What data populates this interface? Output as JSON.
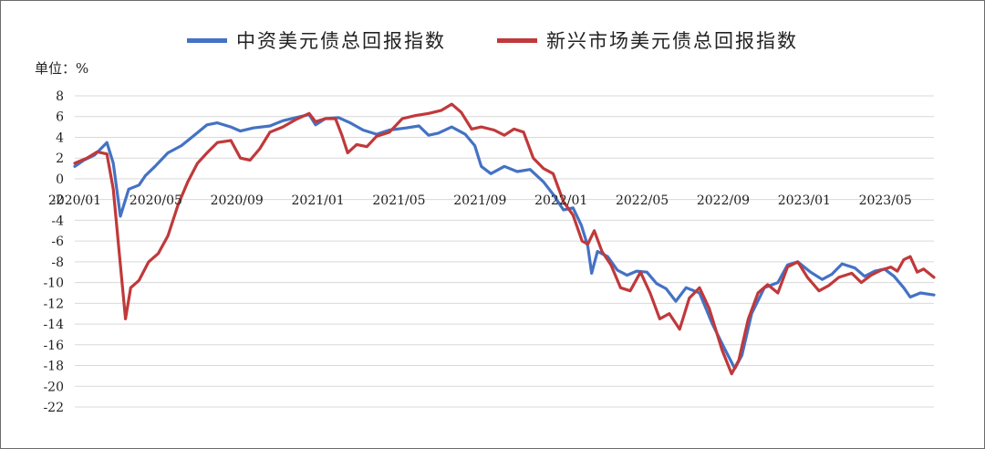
{
  "chart_data": {
    "type": "line",
    "unit_label": "单位：%",
    "legend_position": "top-center",
    "grid": true,
    "ylim": [
      -22,
      8
    ],
    "y_ticks": [
      8,
      6,
      4,
      2,
      0,
      -2,
      -4,
      -6,
      -8,
      -10,
      -12,
      -14,
      -16,
      -18,
      -20,
      -22
    ],
    "x_ticks": [
      "2020/01",
      "2020/05",
      "2020/09",
      "2021/01",
      "2021/05",
      "2021/09",
      "2022/01",
      "2022/05",
      "2022/09",
      "2023/01",
      "2023/05"
    ],
    "x_range": [
      "2020-01-01",
      "2023-08-31"
    ],
    "series": [
      {
        "name": "中资美元债总回报指数",
        "color": "#4472c4",
        "points": [
          [
            "2020-01-01",
            1.2
          ],
          [
            "2020-01-15",
            1.8
          ],
          [
            "2020-02-01",
            2.3
          ],
          [
            "2020-02-20",
            3.5
          ],
          [
            "2020-03-01",
            1.5
          ],
          [
            "2020-03-12",
            -3.6
          ],
          [
            "2020-03-25",
            -1.0
          ],
          [
            "2020-04-10",
            -0.6
          ],
          [
            "2020-04-20",
            0.3
          ],
          [
            "2020-05-05",
            1.2
          ],
          [
            "2020-05-25",
            2.5
          ],
          [
            "2020-06-15",
            3.2
          ],
          [
            "2020-07-05",
            4.2
          ],
          [
            "2020-07-25",
            5.2
          ],
          [
            "2020-08-10",
            5.4
          ],
          [
            "2020-08-31",
            5.0
          ],
          [
            "2020-09-15",
            4.6
          ],
          [
            "2020-10-05",
            4.9
          ],
          [
            "2020-10-31",
            5.1
          ],
          [
            "2020-11-20",
            5.6
          ],
          [
            "2020-12-10",
            5.9
          ],
          [
            "2020-12-31",
            6.2
          ],
          [
            "2021-01-10",
            5.2
          ],
          [
            "2021-01-25",
            5.8
          ],
          [
            "2021-02-15",
            5.9
          ],
          [
            "2021-03-05",
            5.4
          ],
          [
            "2021-03-25",
            4.7
          ],
          [
            "2021-04-15",
            4.3
          ],
          [
            "2021-05-05",
            4.7
          ],
          [
            "2021-05-31",
            4.9
          ],
          [
            "2021-06-20",
            5.1
          ],
          [
            "2021-07-05",
            4.2
          ],
          [
            "2021-07-20",
            4.4
          ],
          [
            "2021-08-10",
            5.0
          ],
          [
            "2021-08-31",
            4.3
          ],
          [
            "2021-09-15",
            3.2
          ],
          [
            "2021-09-25",
            1.2
          ],
          [
            "2021-10-10",
            0.5
          ],
          [
            "2021-10-31",
            1.2
          ],
          [
            "2021-11-20",
            0.7
          ],
          [
            "2021-12-10",
            0.9
          ],
          [
            "2021-12-31",
            -0.3
          ],
          [
            "2022-01-15",
            -1.5
          ],
          [
            "2022-01-31",
            -3.0
          ],
          [
            "2022-02-15",
            -2.8
          ],
          [
            "2022-02-28",
            -4.5
          ],
          [
            "2022-03-10",
            -6.5
          ],
          [
            "2022-03-16",
            -9.1
          ],
          [
            "2022-03-25",
            -7.0
          ],
          [
            "2022-04-10",
            -7.5
          ],
          [
            "2022-04-25",
            -8.8
          ],
          [
            "2022-05-10",
            -9.3
          ],
          [
            "2022-05-25",
            -8.9
          ],
          [
            "2022-06-10",
            -9.0
          ],
          [
            "2022-06-25",
            -10.1
          ],
          [
            "2022-07-10",
            -10.6
          ],
          [
            "2022-07-25",
            -11.8
          ],
          [
            "2022-08-10",
            -10.5
          ],
          [
            "2022-08-31",
            -11.0
          ],
          [
            "2022-09-20",
            -14.0
          ],
          [
            "2022-10-10",
            -16.5
          ],
          [
            "2022-10-25",
            -18.3
          ],
          [
            "2022-11-05",
            -17.0
          ],
          [
            "2022-11-20",
            -13.0
          ],
          [
            "2022-12-10",
            -10.5
          ],
          [
            "2022-12-31",
            -10.0
          ],
          [
            "2023-01-15",
            -8.3
          ],
          [
            "2023-01-31",
            -8.0
          ],
          [
            "2023-02-20",
            -9.0
          ],
          [
            "2023-03-10",
            -9.7
          ],
          [
            "2023-03-25",
            -9.2
          ],
          [
            "2023-04-10",
            -8.2
          ],
          [
            "2023-04-30",
            -8.6
          ],
          [
            "2023-05-15",
            -9.4
          ],
          [
            "2023-05-31",
            -8.9
          ],
          [
            "2023-06-15",
            -8.7
          ],
          [
            "2023-06-30",
            -9.4
          ],
          [
            "2023-07-15",
            -10.5
          ],
          [
            "2023-07-25",
            -11.4
          ],
          [
            "2023-08-10",
            -11.0
          ],
          [
            "2023-08-31",
            -11.2
          ]
        ]
      },
      {
        "name": "新兴市场美元债总回报指数",
        "color": "#c0393b",
        "points": [
          [
            "2020-01-01",
            1.5
          ],
          [
            "2020-01-20",
            2.0
          ],
          [
            "2020-02-05",
            2.6
          ],
          [
            "2020-02-20",
            2.4
          ],
          [
            "2020-03-01",
            -1.0
          ],
          [
            "2020-03-10",
            -7.0
          ],
          [
            "2020-03-20",
            -13.5
          ],
          [
            "2020-03-28",
            -10.5
          ],
          [
            "2020-04-10",
            -9.8
          ],
          [
            "2020-04-25",
            -8.0
          ],
          [
            "2020-05-10",
            -7.2
          ],
          [
            "2020-05-25",
            -5.5
          ],
          [
            "2020-06-10",
            -2.5
          ],
          [
            "2020-06-25",
            -0.3
          ],
          [
            "2020-07-10",
            1.5
          ],
          [
            "2020-07-25",
            2.5
          ],
          [
            "2020-08-10",
            3.5
          ],
          [
            "2020-08-31",
            3.7
          ],
          [
            "2020-09-15",
            2.0
          ],
          [
            "2020-09-30",
            1.8
          ],
          [
            "2020-10-15",
            2.9
          ],
          [
            "2020-10-31",
            4.5
          ],
          [
            "2020-11-20",
            5.0
          ],
          [
            "2020-12-10",
            5.7
          ],
          [
            "2020-12-31",
            6.3
          ],
          [
            "2021-01-10",
            5.5
          ],
          [
            "2021-01-25",
            5.8
          ],
          [
            "2021-02-10",
            5.8
          ],
          [
            "2021-02-20",
            4.2
          ],
          [
            "2021-03-01",
            2.5
          ],
          [
            "2021-03-15",
            3.3
          ],
          [
            "2021-03-31",
            3.1
          ],
          [
            "2021-04-15",
            4.1
          ],
          [
            "2021-05-05",
            4.5
          ],
          [
            "2021-05-25",
            5.8
          ],
          [
            "2021-06-15",
            6.1
          ],
          [
            "2021-07-05",
            6.3
          ],
          [
            "2021-07-25",
            6.6
          ],
          [
            "2021-08-10",
            7.2
          ],
          [
            "2021-08-25",
            6.4
          ],
          [
            "2021-09-10",
            4.8
          ],
          [
            "2021-09-25",
            5.0
          ],
          [
            "2021-10-15",
            4.7
          ],
          [
            "2021-10-31",
            4.2
          ],
          [
            "2021-11-15",
            4.8
          ],
          [
            "2021-11-30",
            4.5
          ],
          [
            "2021-12-15",
            2.0
          ],
          [
            "2021-12-31",
            1.0
          ],
          [
            "2022-01-15",
            0.5
          ],
          [
            "2022-01-31",
            -2.2
          ],
          [
            "2022-02-15",
            -3.5
          ],
          [
            "2022-03-01",
            -6.0
          ],
          [
            "2022-03-10",
            -6.3
          ],
          [
            "2022-03-20",
            -5.0
          ],
          [
            "2022-04-01",
            -7.0
          ],
          [
            "2022-04-15",
            -8.3
          ],
          [
            "2022-04-30",
            -10.5
          ],
          [
            "2022-05-15",
            -10.8
          ],
          [
            "2022-05-31",
            -9.0
          ],
          [
            "2022-06-15",
            -11.0
          ],
          [
            "2022-06-30",
            -13.5
          ],
          [
            "2022-07-15",
            -13.0
          ],
          [
            "2022-07-31",
            -14.5
          ],
          [
            "2022-08-15",
            -11.5
          ],
          [
            "2022-08-31",
            -10.5
          ],
          [
            "2022-09-15",
            -12.5
          ],
          [
            "2022-10-05",
            -16.5
          ],
          [
            "2022-10-20",
            -18.8
          ],
          [
            "2022-10-31",
            -17.5
          ],
          [
            "2022-11-15",
            -13.5
          ],
          [
            "2022-11-30",
            -11.0
          ],
          [
            "2022-12-15",
            -10.2
          ],
          [
            "2022-12-31",
            -11.0
          ],
          [
            "2023-01-15",
            -8.5
          ],
          [
            "2023-01-31",
            -8.0
          ],
          [
            "2023-02-15",
            -9.5
          ],
          [
            "2023-03-05",
            -10.8
          ],
          [
            "2023-03-20",
            -10.3
          ],
          [
            "2023-04-05",
            -9.5
          ],
          [
            "2023-04-25",
            -9.1
          ],
          [
            "2023-05-10",
            -10.0
          ],
          [
            "2023-05-25",
            -9.3
          ],
          [
            "2023-06-10",
            -8.8
          ],
          [
            "2023-06-25",
            -8.5
          ],
          [
            "2023-07-05",
            -8.9
          ],
          [
            "2023-07-15",
            -7.8
          ],
          [
            "2023-07-25",
            -7.5
          ],
          [
            "2023-08-05",
            -9.0
          ],
          [
            "2023-08-15",
            -8.7
          ],
          [
            "2023-08-31",
            -9.5
          ]
        ]
      }
    ]
  }
}
